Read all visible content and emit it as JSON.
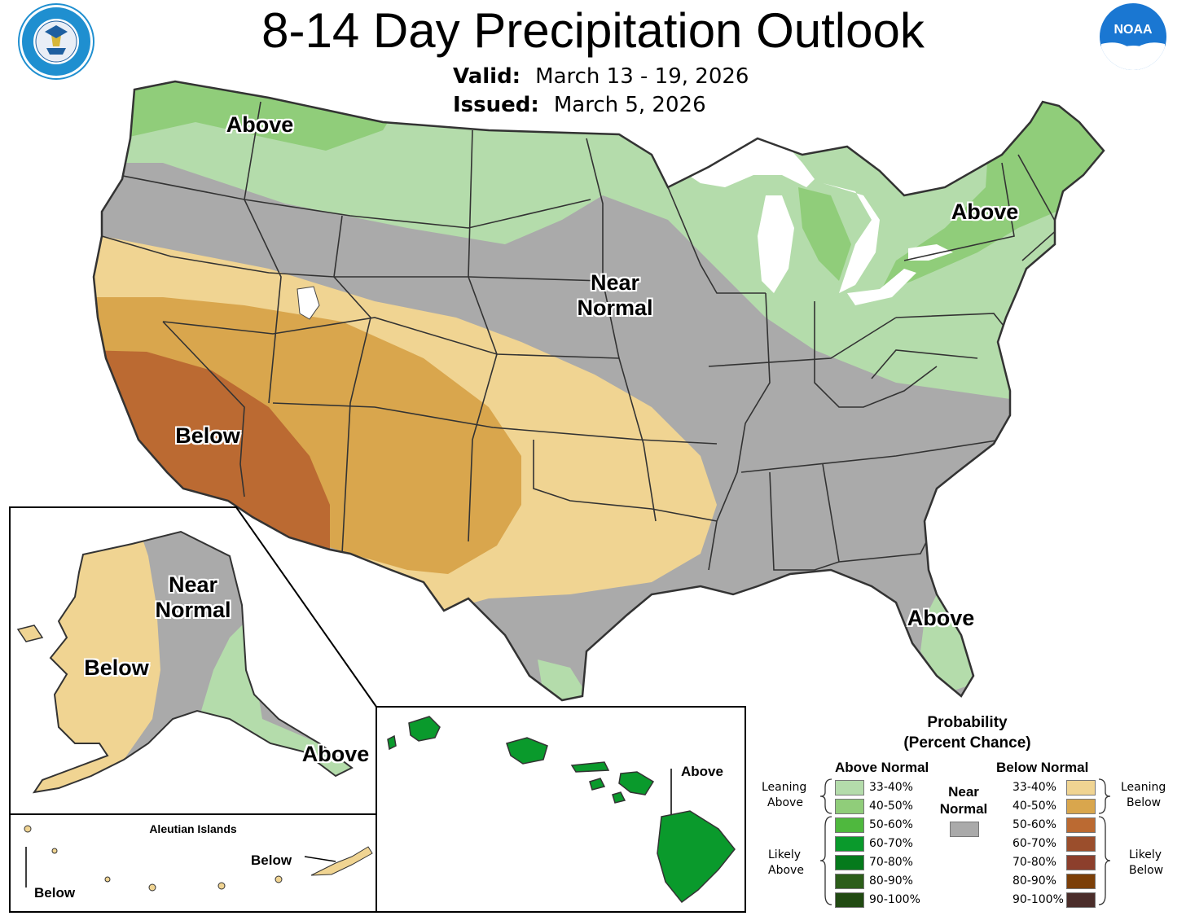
{
  "header": {
    "title": "8-14 Day Precipitation Outlook",
    "valid_label": "Valid:",
    "valid_value": "March 13 - 19, 2026",
    "issued_label": "Issued:",
    "issued_value": "March 5, 2026"
  },
  "logos": {
    "left_icon": "department-of-commerce-seal",
    "right_icon": "noaa-logo",
    "noaa_text": "NOAA"
  },
  "map_labels": {
    "conus_above_nw": "Above",
    "conus_above_ne": "Above",
    "conus_near_normal": "Near\nNormal",
    "conus_below": "Below",
    "conus_above_fl": "Above",
    "ak_near_normal": "Near\nNormal",
    "ak_below": "Below",
    "ak_above": "Above",
    "aleutian_title": "Aleutian Islands",
    "aleutian_below_right": "Below",
    "aleutian_below_left": "Below",
    "hawaii_above": "Above"
  },
  "legend": {
    "title_line1": "Probability",
    "title_line2": "(Percent Chance)",
    "above_header": "Above Normal",
    "below_header": "Below Normal",
    "near_header_line1": "Near",
    "near_header_line2": "Normal",
    "near_color": "#aaaaaa",
    "leaning_above": [
      "Leaning",
      "Above"
    ],
    "likely_above": [
      "Likely",
      "Above"
    ],
    "leaning_below": [
      "Leaning",
      "Below"
    ],
    "likely_below": [
      "Likely",
      "Below"
    ],
    "above_rows": [
      {
        "label": "33-40%",
        "color": "#b4dcab"
      },
      {
        "label": "40-50%",
        "color": "#90cd7a"
      },
      {
        "label": "50-60%",
        "color": "#4fb83e"
      },
      {
        "label": "60-70%",
        "color": "#0a9a2c"
      },
      {
        "label": "70-80%",
        "color": "#057a1c"
      },
      {
        "label": "80-90%",
        "color": "#2c5e1a"
      },
      {
        "label": "90-100%",
        "color": "#214a12"
      }
    ],
    "below_rows": [
      {
        "label": "33-40%",
        "color": "#f0d492"
      },
      {
        "label": "40-50%",
        "color": "#d9a64d"
      },
      {
        "label": "50-60%",
        "color": "#bb6a32"
      },
      {
        "label": "60-70%",
        "color": "#9b4e2c"
      },
      {
        "label": "70-80%",
        "color": "#8c3f2c"
      },
      {
        "label": "80-90%",
        "color": "#7c3f08"
      },
      {
        "label": "90-100%",
        "color": "#4b2d2a"
      }
    ]
  },
  "colors": {
    "near_normal": "#aaaaaa",
    "above_33": "#b4dcab",
    "above_40": "#90cd7a",
    "below_33": "#f0d492",
    "below_40": "#d9a64d",
    "below_50": "#bb6a32",
    "hawaii": "#0a9a2c",
    "lakes": "#ffffff"
  }
}
